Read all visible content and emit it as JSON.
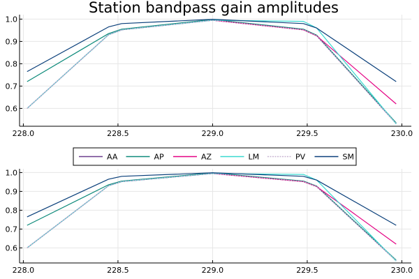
{
  "title": "Station bandpass gain amplitudes",
  "chart_data": [
    {
      "type": "line",
      "title": "Station bandpass gain amplitudes",
      "xlabel": "",
      "ylabel": "",
      "xlim": [
        227.98,
        230.05
      ],
      "ylim": [
        0.52,
        1.02
      ],
      "xticks": [
        "228.0",
        "228.5",
        "229.0",
        "229.5",
        "230.0"
      ],
      "yticks": [
        "0.6",
        "0.7",
        "0.8",
        "0.9",
        "1.0"
      ],
      "grid": true,
      "legend": "none",
      "x": [
        228.02,
        228.45,
        228.52,
        229.0,
        229.48,
        229.55,
        229.97
      ],
      "series": [
        {
          "name": "AA",
          "color": "#6b3e8e",
          "values": [
            0.6,
            0.93,
            0.952,
            0.995,
            0.952,
            0.925,
            0.532
          ]
        },
        {
          "name": "AP",
          "color": "#0d8a7a",
          "values": [
            0.72,
            0.935,
            0.955,
            0.998,
            0.955,
            0.928,
            0.535
          ]
        },
        {
          "name": "AZ",
          "color": "#e40083",
          "values": [
            0.6,
            0.93,
            0.952,
            0.995,
            0.952,
            0.925,
            0.62
          ]
        },
        {
          "name": "LM",
          "color": "#38d9d0",
          "values": [
            0.6,
            0.93,
            0.952,
            0.995,
            0.99,
            0.96,
            0.53
          ]
        },
        {
          "name": "PV",
          "color": "#c8b4d2",
          "values": [
            0.6,
            0.93,
            0.952,
            0.995,
            0.952,
            0.925,
            0.532
          ]
        },
        {
          "name": "SM",
          "color": "#0a3f7a",
          "values": [
            0.765,
            0.965,
            0.98,
            0.999,
            0.98,
            0.96,
            0.72
          ]
        }
      ]
    },
    {
      "type": "line",
      "title": "",
      "xlabel": "",
      "ylabel": "",
      "xlim": [
        227.98,
        230.05
      ],
      "ylim": [
        0.52,
        1.02
      ],
      "xticks": [
        "228.0",
        "228.5",
        "229.0",
        "229.5",
        "230.0"
      ],
      "yticks": [
        "0.6",
        "0.7",
        "0.8",
        "0.9",
        "1.0"
      ],
      "grid": true,
      "legend": "top-center",
      "x": [
        228.02,
        228.45,
        228.52,
        229.0,
        229.48,
        229.55,
        229.97
      ],
      "series": [
        {
          "name": "AA",
          "color": "#6b3e8e",
          "values": [
            0.6,
            0.93,
            0.952,
            0.995,
            0.952,
            0.925,
            0.532
          ]
        },
        {
          "name": "AP",
          "color": "#0d8a7a",
          "values": [
            0.72,
            0.935,
            0.955,
            0.998,
            0.955,
            0.928,
            0.535
          ]
        },
        {
          "name": "AZ",
          "color": "#e40083",
          "values": [
            0.6,
            0.93,
            0.952,
            0.995,
            0.952,
            0.925,
            0.62
          ]
        },
        {
          "name": "LM",
          "color": "#38d9d0",
          "values": [
            0.6,
            0.93,
            0.952,
            0.995,
            0.99,
            0.96,
            0.53
          ]
        },
        {
          "name": "PV",
          "color": "#c8b4d2",
          "values": [
            0.6,
            0.93,
            0.952,
            0.995,
            0.952,
            0.925,
            0.532
          ]
        },
        {
          "name": "SM",
          "color": "#0a3f7a",
          "values": [
            0.765,
            0.965,
            0.98,
            0.999,
            0.98,
            0.96,
            0.72
          ]
        }
      ]
    }
  ]
}
